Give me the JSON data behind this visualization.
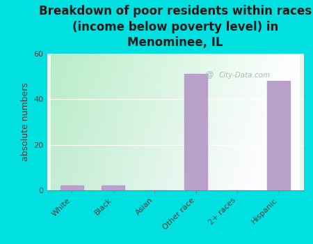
{
  "categories": [
    "White",
    "Black",
    "Asian",
    "Other race",
    "2+ races",
    "Hispanic"
  ],
  "values": [
    2,
    2,
    0,
    51,
    0,
    48
  ],
  "bar_color": "#b8a0c8",
  "title": "Breakdown of poor residents within races\n(income below poverty level) in\nMenominee, IL",
  "ylabel": "absolute numbers",
  "ylim": [
    0,
    60
  ],
  "yticks": [
    0,
    20,
    40,
    60
  ],
  "background_color": "#00e0e0",
  "plot_bg_left": "#b8ecc8",
  "plot_bg_right": "#e8f8f0",
  "title_fontsize": 12,
  "axis_label_fontsize": 9,
  "tick_fontsize": 8,
  "watermark": "City-Data.com"
}
